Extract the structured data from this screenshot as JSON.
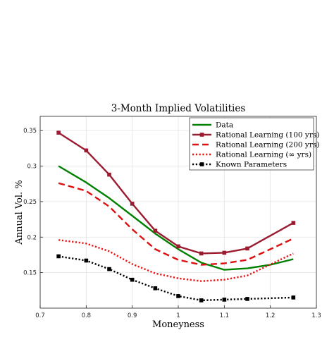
{
  "chart_data": {
    "type": "line",
    "title": "3-Month Implied Volatilities",
    "xlabel": "Moneyness",
    "ylabel": "Annual Vol. %",
    "xlim": [
      0.7,
      1.3
    ],
    "ylim": [
      0.1,
      0.37
    ],
    "xticks": [
      "0.7",
      "0.8",
      "0.9",
      "1",
      "1.1",
      "1.2",
      "1.3"
    ],
    "yticks": [
      "0.15",
      "0.2",
      "0.25",
      "0.3",
      "0.35"
    ],
    "grid": true,
    "legend_position": "top-right",
    "series": [
      {
        "name": "Data",
        "color": "#008000",
        "style": "solid",
        "marker": "none",
        "x": [
          0.74,
          0.8,
          0.85,
          0.9,
          0.95,
          1.0,
          1.05,
          1.1,
          1.15,
          1.2,
          1.25
        ],
        "y": [
          0.3,
          0.277,
          0.255,
          0.23,
          0.205,
          0.183,
          0.164,
          0.154,
          0.156,
          0.161,
          0.169
        ]
      },
      {
        "name": "Rational Learning (100 yrs)",
        "color": "#9b1b30",
        "style": "solid",
        "marker": "square",
        "x": [
          0.74,
          0.8,
          0.85,
          0.9,
          0.95,
          1.0,
          1.05,
          1.1,
          1.15,
          1.25
        ],
        "y": [
          0.347,
          0.322,
          0.288,
          0.247,
          0.209,
          0.187,
          0.177,
          0.178,
          0.184,
          0.22
        ]
      },
      {
        "name": "Rational Learning (200 yrs)",
        "color": "#dd1111",
        "style": "dashed",
        "marker": "none",
        "x": [
          0.74,
          0.8,
          0.85,
          0.9,
          0.95,
          1.0,
          1.05,
          1.1,
          1.15,
          1.25
        ],
        "y": [
          0.276,
          0.265,
          0.243,
          0.211,
          0.183,
          0.168,
          0.161,
          0.163,
          0.168,
          0.198
        ]
      },
      {
        "name": "Rational Learning (∞ yrs)",
        "color": "#ee1111",
        "style": "dotted",
        "marker": "none",
        "x": [
          0.74,
          0.8,
          0.85,
          0.9,
          0.95,
          1.0,
          1.05,
          1.1,
          1.15,
          1.25
        ],
        "y": [
          0.196,
          0.191,
          0.18,
          0.162,
          0.149,
          0.142,
          0.138,
          0.14,
          0.146,
          0.177
        ]
      },
      {
        "name": "Known Parameters",
        "color": "#000000",
        "style": "dotted",
        "marker": "square",
        "x": [
          0.74,
          0.8,
          0.85,
          0.9,
          0.95,
          1.0,
          1.05,
          1.1,
          1.15,
          1.25
        ],
        "y": [
          0.173,
          0.167,
          0.155,
          0.14,
          0.128,
          0.117,
          0.111,
          0.112,
          0.113,
          0.115
        ]
      }
    ]
  }
}
